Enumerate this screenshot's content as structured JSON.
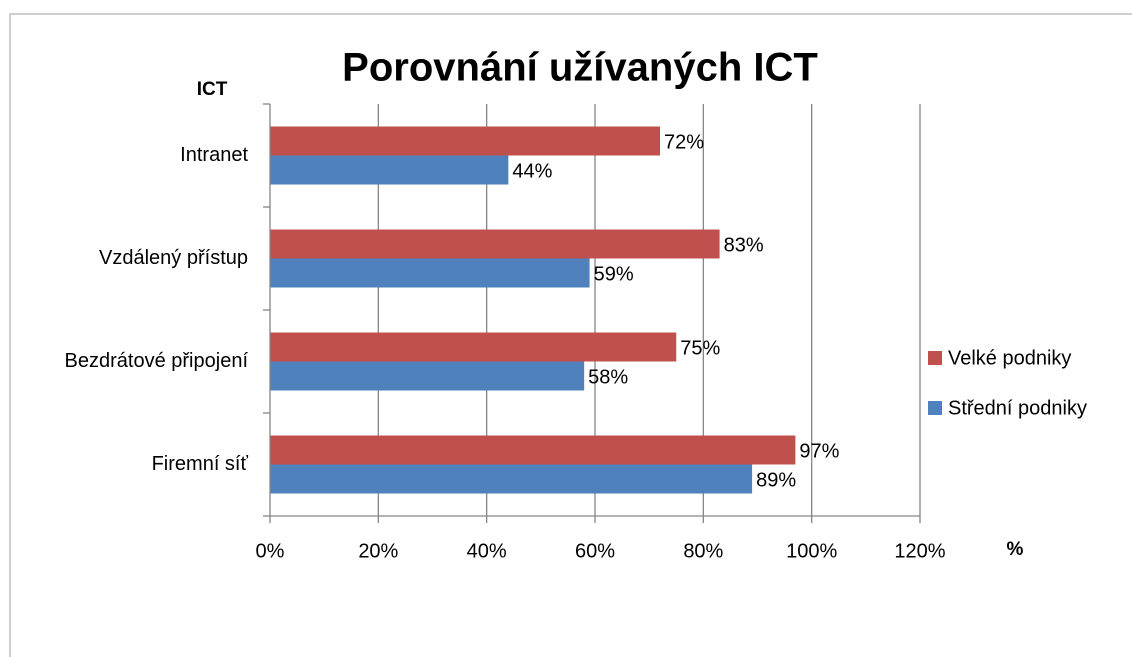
{
  "chart_data": {
    "type": "hbar",
    "title": "Porovnání užívaných ICT",
    "y_label": "ICT",
    "x_label": "%",
    "categories": [
      "Intranet",
      "Vzdálený přístup",
      "Bezdrátové připojení",
      "Firemní síť"
    ],
    "series": [
      {
        "name": "Velké podniky",
        "color": "#c0504d",
        "values": [
          72,
          83,
          75,
          97
        ],
        "value_labels": [
          "72%",
          "83%",
          "75%",
          "97%"
        ]
      },
      {
        "name": "Střední podniky",
        "color": "#4f81bd",
        "values": [
          44,
          59,
          58,
          89
        ],
        "value_labels": [
          "44%",
          "59%",
          "58%",
          "89%"
        ]
      }
    ],
    "xlim": [
      0,
      120
    ],
    "xticks": [
      {
        "value": 0,
        "label": "0%"
      },
      {
        "value": 20,
        "label": "20%"
      },
      {
        "value": 40,
        "label": "40%"
      },
      {
        "value": 60,
        "label": "60%"
      },
      {
        "value": 80,
        "label": "80%"
      },
      {
        "value": 100,
        "label": "100%"
      },
      {
        "value": 120,
        "label": "120%"
      }
    ],
    "grid": true,
    "legend": "right"
  }
}
